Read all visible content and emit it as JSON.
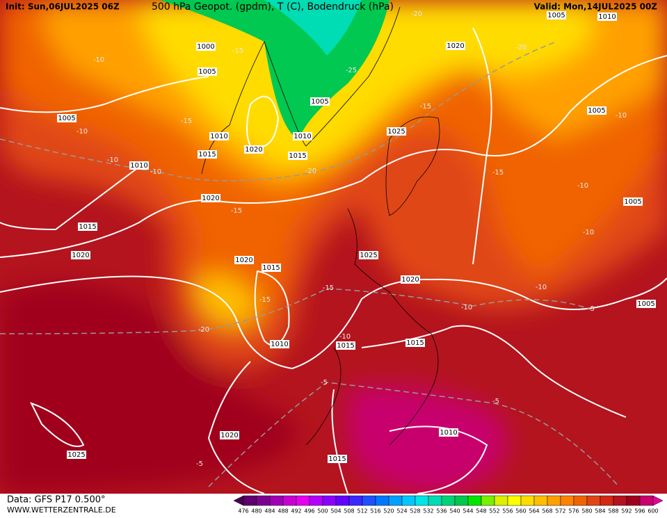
{
  "header": {
    "init": "Init: Sun,06JUL2025 06Z",
    "title": "500 hPa Geopot. (gpdm), T (C), Bodendruck (hPa)",
    "valid": "Valid: Mon,14JUL2025 00Z"
  },
  "footer": {
    "source": "Data: GFS P17 0.500°",
    "site": "WWW.WETTERZENTRALE.DE"
  },
  "colorbar": {
    "ticks": [
      476,
      480,
      484,
      488,
      492,
      496,
      500,
      504,
      508,
      512,
      516,
      520,
      524,
      528,
      532,
      536,
      540,
      544,
      548,
      552,
      556,
      560,
      564,
      568,
      572,
      576,
      580,
      584,
      588,
      592,
      596,
      600
    ],
    "colors": [
      "#4b0050",
      "#5e006e",
      "#7d0091",
      "#a000b4",
      "#c800d2",
      "#e600f0",
      "#b400ff",
      "#8c00ff",
      "#6400ff",
      "#3c28ff",
      "#1e50ff",
      "#0078ff",
      "#00a0ff",
      "#00c8ff",
      "#00e6e6",
      "#00dcb4",
      "#00d278",
      "#00c850",
      "#00e600",
      "#78f000",
      "#dcf000",
      "#ffff00",
      "#ffdc00",
      "#ffbe00",
      "#ffa000",
      "#ff8200",
      "#f06400",
      "#e04614",
      "#d22814",
      "#b4141e",
      "#a0001e",
      "#c8006e",
      "#e600a0"
    ]
  },
  "isobar_labels": [
    "1000",
    "1005",
    "1005",
    "1010",
    "1015",
    "1020",
    "1010",
    "1015",
    "1005",
    "1010",
    "1015",
    "1020",
    "1020",
    "1020",
    "1015",
    "1010",
    "1015",
    "1025",
    "1020",
    "1015",
    "1025",
    "1020",
    "1005",
    "1010",
    "1005",
    "1005",
    "1005",
    "1010",
    "1015",
    "1020",
    "1025"
  ],
  "temperature_labels": [
    "-10",
    "-10",
    "-10",
    "-10",
    "-15",
    "-15",
    "-25",
    "-15",
    "-20",
    "-15",
    "-15",
    "-20",
    "-10",
    "-10",
    "-10",
    "-10",
    "-10",
    "-15",
    "-15",
    "-20",
    "-10",
    "-5",
    "-5",
    "-5",
    "-5",
    "-20"
  ]
}
